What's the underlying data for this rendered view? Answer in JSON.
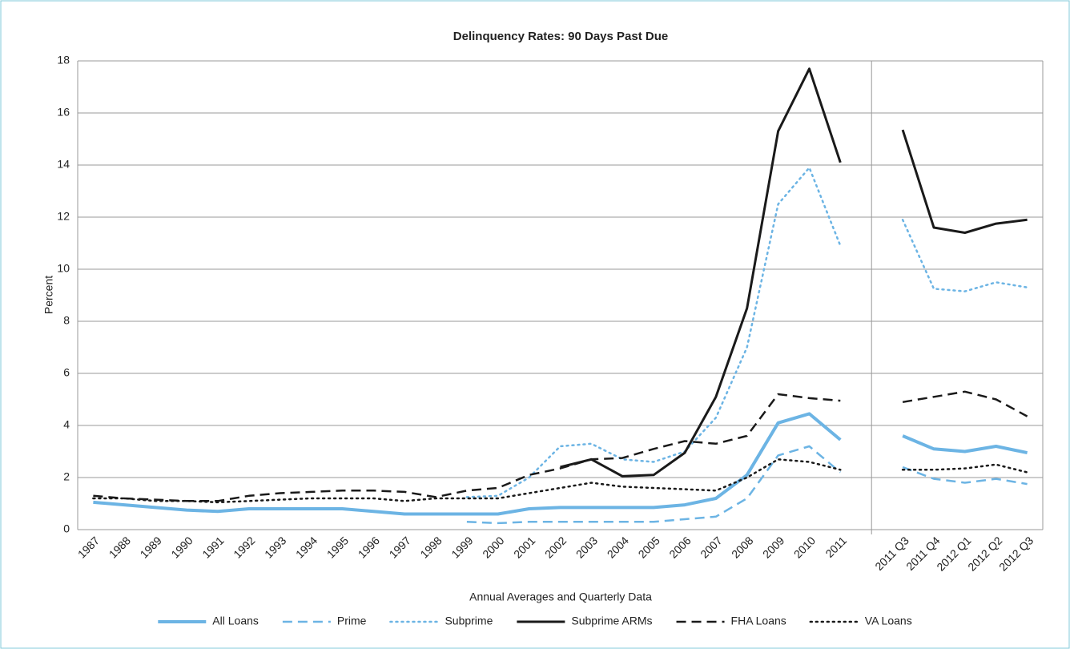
{
  "chart_data": {
    "type": "line",
    "title": "Delinquency Rates: 90 Days Past Due",
    "y_label": "Percent",
    "x_label": "Annual Averages and Quarterly Data",
    "categories": [
      "1987",
      "1988",
      "1989",
      "1990",
      "1991",
      "1992",
      "1993",
      "1994",
      "1995",
      "1996",
      "1997",
      "1998",
      "1999",
      "2000",
      "2001",
      "2002",
      "2003",
      "2004",
      "2005",
      "2006",
      "2007",
      "2008",
      "2009",
      "2010",
      "2011",
      null,
      "2011 Q3",
      "2011 Q4",
      "2012 Q1",
      "2012 Q2",
      "2012 Q3"
    ],
    "ylim": [
      0,
      18
    ],
    "yticks": [
      0,
      2,
      4,
      6,
      8,
      10,
      12,
      14,
      16,
      18
    ],
    "grid": true,
    "legend": "bottom",
    "series": [
      {
        "name": "All Loans",
        "color": "#6cb4e4",
        "style": "solid",
        "width": 4,
        "values": [
          1.05,
          0.95,
          0.85,
          0.75,
          0.7,
          0.8,
          0.8,
          0.8,
          0.8,
          0.7,
          0.6,
          0.6,
          0.6,
          0.6,
          0.8,
          0.85,
          0.85,
          0.85,
          0.85,
          0.95,
          1.2,
          2.1,
          4.1,
          4.45,
          3.45,
          null,
          3.6,
          3.1,
          3.0,
          3.2,
          2.95
        ]
      },
      {
        "name": "Prime",
        "color": "#6cb4e4",
        "style": "dashed",
        "width": 2.5,
        "values": [
          null,
          null,
          null,
          null,
          null,
          null,
          null,
          null,
          null,
          null,
          null,
          null,
          0.3,
          0.25,
          0.3,
          0.3,
          0.3,
          0.3,
          0.3,
          0.4,
          0.5,
          1.2,
          2.85,
          3.2,
          2.2,
          null,
          2.4,
          1.95,
          1.8,
          1.95,
          1.75
        ]
      },
      {
        "name": "Subprime",
        "color": "#6cb4e4",
        "style": "dotted",
        "width": 2.5,
        "values": [
          null,
          null,
          null,
          null,
          null,
          null,
          null,
          null,
          null,
          null,
          null,
          null,
          1.25,
          1.3,
          2.0,
          3.2,
          3.3,
          2.7,
          2.6,
          3.0,
          4.3,
          7.0,
          12.5,
          13.9,
          10.9,
          null,
          11.9,
          9.25,
          9.15,
          9.5,
          9.3
        ]
      },
      {
        "name": "Subprime ARMs",
        "color": "#1a1a1a",
        "style": "solid",
        "width": 3,
        "values": [
          null,
          null,
          null,
          null,
          null,
          null,
          null,
          null,
          null,
          null,
          null,
          null,
          null,
          null,
          null,
          2.4,
          2.7,
          2.05,
          2.1,
          2.95,
          5.1,
          8.5,
          15.3,
          17.7,
          14.1,
          null,
          15.35,
          11.6,
          11.4,
          11.75,
          11.9
        ]
      },
      {
        "name": "FHA Loans",
        "color": "#1a1a1a",
        "style": "dashed",
        "width": 2.5,
        "values": [
          1.3,
          1.2,
          1.15,
          1.1,
          1.1,
          1.3,
          1.4,
          1.45,
          1.5,
          1.5,
          1.45,
          1.25,
          1.5,
          1.6,
          2.1,
          2.35,
          2.7,
          2.75,
          3.1,
          3.4,
          3.3,
          3.6,
          5.2,
          5.05,
          4.95,
          null,
          4.9,
          5.1,
          5.3,
          5.0,
          4.35
        ]
      },
      {
        "name": "VA Loans",
        "color": "#1a1a1a",
        "style": "dotted",
        "width": 2.5,
        "values": [
          1.2,
          1.2,
          1.1,
          1.1,
          1.05,
          1.1,
          1.15,
          1.2,
          1.2,
          1.2,
          1.1,
          1.2,
          1.2,
          1.2,
          1.4,
          1.6,
          1.8,
          1.65,
          1.6,
          1.55,
          1.5,
          2.0,
          2.7,
          2.6,
          2.3,
          null,
          2.3,
          2.3,
          2.35,
          2.5,
          2.2
        ]
      }
    ]
  }
}
